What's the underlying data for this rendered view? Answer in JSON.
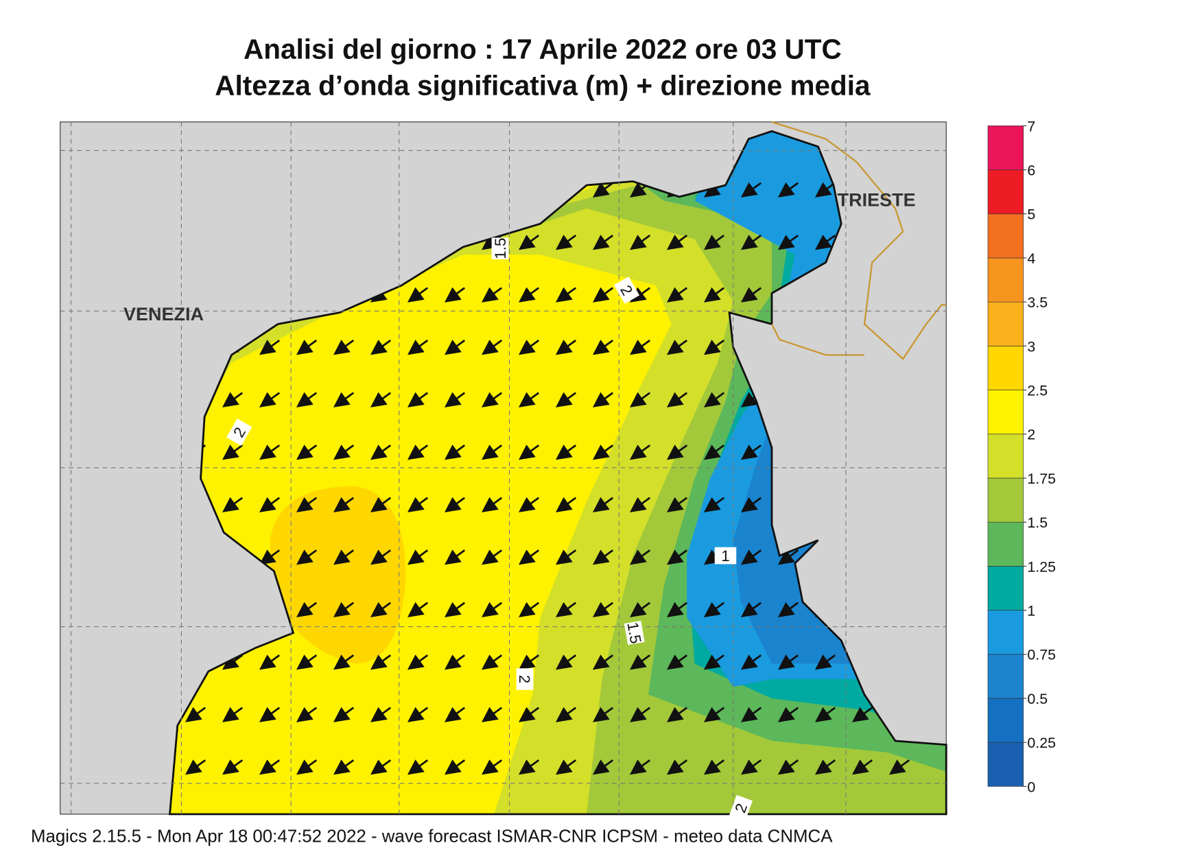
{
  "header": {
    "title_line1": "Analisi del giorno :  17   Aprile  2022   ore 03 UTC",
    "title_line2": "Altezza d’onda significativa (m) + direzione media"
  },
  "places": [
    "VENEZIA",
    "TRIESTE"
  ],
  "contour_labels": [
    1.5,
    2,
    2,
    1,
    1.5,
    2,
    2
  ],
  "colorbar": {
    "levels": [
      0,
      0.25,
      0.5,
      0.75,
      1,
      1.25,
      1.5,
      1.75,
      2,
      2.5,
      3,
      3.5,
      4,
      5,
      6,
      7
    ],
    "colors": [
      "#1a5fb0",
      "#1470c0",
      "#1a84cf",
      "#1a9be0",
      "#00aaa0",
      "#5cb85a",
      "#a3c93a",
      "#d4df2a",
      "#fff200",
      "#ffd700",
      "#fbb11c",
      "#f7941d",
      "#f37021",
      "#ed1c24",
      "#ec145a"
    ]
  },
  "footer": "Magics 2.15.5 - Mon Apr 18 00:47:52 2022 - wave forecast  ISMAR-CNR  ICPSM - meteo data   CNMCA"
}
